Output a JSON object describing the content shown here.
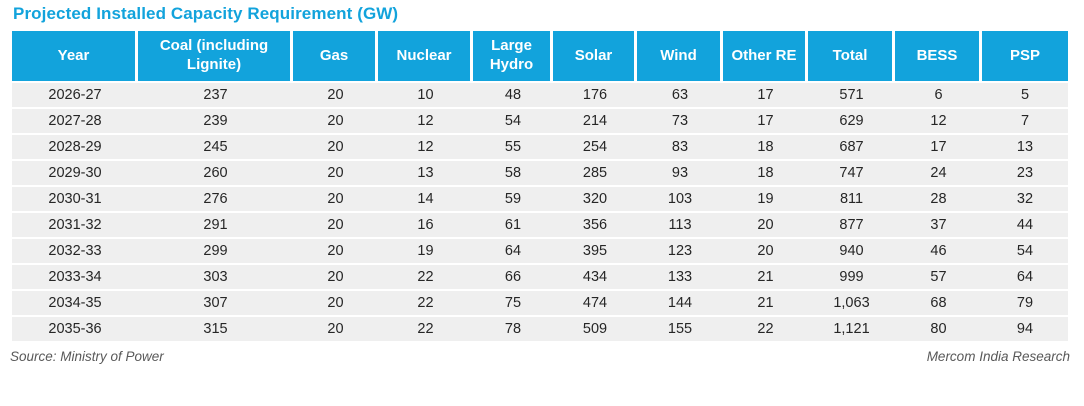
{
  "title": "Projected Installed Capacity Requirement (GW)",
  "source_note": "Source: Ministry of Power",
  "attribution": "Mercom India Research",
  "colors": {
    "accent": "#12A3DC",
    "header_background": "#12A3DC",
    "header_text": "#FFFFFF",
    "row_background": "#EFEFEF",
    "body_text": "#262626",
    "footer_text": "#595959"
  },
  "table": {
    "columns": [
      "Year",
      "Coal (including Lignite)",
      "Gas",
      "Nuclear",
      "Large Hydro",
      "Solar",
      "Wind",
      "Other RE",
      "Total",
      "BESS",
      "PSP"
    ],
    "rows": [
      [
        "2026-27",
        "237",
        "20",
        "10",
        "48",
        "176",
        "63",
        "17",
        "571",
        "6",
        "5"
      ],
      [
        "2027-28",
        "239",
        "20",
        "12",
        "54",
        "214",
        "73",
        "17",
        "629",
        "12",
        "7"
      ],
      [
        "2028-29",
        "245",
        "20",
        "12",
        "55",
        "254",
        "83",
        "18",
        "687",
        "17",
        "13"
      ],
      [
        "2029-30",
        "260",
        "20",
        "13",
        "58",
        "285",
        "93",
        "18",
        "747",
        "24",
        "23"
      ],
      [
        "2030-31",
        "276",
        "20",
        "14",
        "59",
        "320",
        "103",
        "19",
        "811",
        "28",
        "32"
      ],
      [
        "2031-32",
        "291",
        "20",
        "16",
        "61",
        "356",
        "113",
        "20",
        "877",
        "37",
        "44"
      ],
      [
        "2032-33",
        "299",
        "20",
        "19",
        "64",
        "395",
        "123",
        "20",
        "940",
        "46",
        "54"
      ],
      [
        "2033-34",
        "303",
        "20",
        "22",
        "66",
        "434",
        "133",
        "21",
        "999",
        "57",
        "64"
      ],
      [
        "2034-35",
        "307",
        "20",
        "22",
        "75",
        "474",
        "144",
        "21",
        "1,063",
        "68",
        "79"
      ],
      [
        "2035-36",
        "315",
        "20",
        "22",
        "78",
        "509",
        "155",
        "22",
        "1,121",
        "80",
        "94"
      ]
    ]
  },
  "chart_data": {
    "type": "table",
    "title": "Projected Installed Capacity Requirement (GW)",
    "categories": [
      "2026-27",
      "2027-28",
      "2028-29",
      "2029-30",
      "2030-31",
      "2031-32",
      "2032-33",
      "2033-34",
      "2034-35",
      "2035-36"
    ],
    "series": [
      {
        "name": "Coal (including Lignite)",
        "values": [
          237,
          239,
          245,
          260,
          276,
          291,
          299,
          303,
          307,
          315
        ]
      },
      {
        "name": "Gas",
        "values": [
          20,
          20,
          20,
          20,
          20,
          20,
          20,
          20,
          20,
          20
        ]
      },
      {
        "name": "Nuclear",
        "values": [
          10,
          12,
          12,
          13,
          14,
          16,
          19,
          22,
          22,
          22
        ]
      },
      {
        "name": "Large Hydro",
        "values": [
          48,
          54,
          55,
          58,
          59,
          61,
          64,
          66,
          75,
          78
        ]
      },
      {
        "name": "Solar",
        "values": [
          176,
          214,
          254,
          285,
          320,
          356,
          395,
          434,
          474,
          509
        ]
      },
      {
        "name": "Wind",
        "values": [
          63,
          73,
          83,
          93,
          103,
          113,
          123,
          133,
          144,
          155
        ]
      },
      {
        "name": "Other RE",
        "values": [
          17,
          17,
          18,
          18,
          19,
          20,
          20,
          21,
          21,
          22
        ]
      },
      {
        "name": "Total",
        "values": [
          571,
          629,
          687,
          747,
          811,
          877,
          940,
          999,
          1063,
          1121
        ]
      },
      {
        "name": "BESS",
        "values": [
          6,
          12,
          17,
          24,
          28,
          37,
          46,
          57,
          68,
          80
        ]
      },
      {
        "name": "PSP",
        "values": [
          5,
          7,
          13,
          23,
          32,
          44,
          54,
          64,
          79,
          94
        ]
      }
    ],
    "unit": "GW",
    "xlabel": "Year",
    "ylabel": ""
  }
}
